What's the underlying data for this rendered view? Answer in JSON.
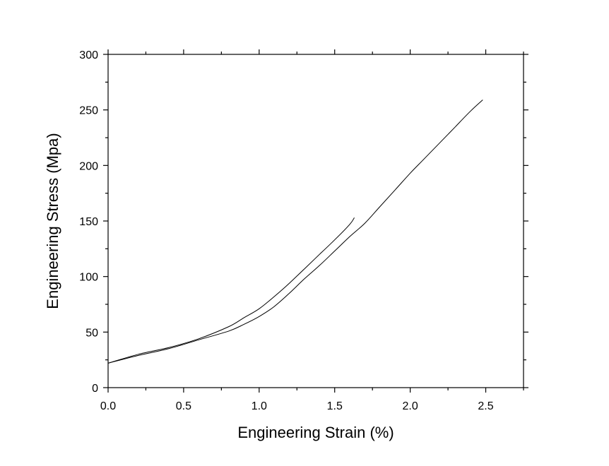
{
  "chart_data": {
    "type": "line",
    "title": "",
    "xlabel": "Engineering Strain (%)",
    "ylabel": "Engineering Stress (Mpa)",
    "xlim": [
      0,
      2.75
    ],
    "ylim": [
      0,
      300
    ],
    "xticks": [
      0.0,
      0.5,
      1.0,
      1.5,
      2.0,
      2.5
    ],
    "xtick_labels": [
      "0.0",
      "0.5",
      "1.0",
      "1.5",
      "2.0",
      "2.5"
    ],
    "yticks": [
      0,
      50,
      100,
      150,
      200,
      250,
      300
    ],
    "ytick_labels": [
      "0",
      "50",
      "100",
      "150",
      "200",
      "250",
      "300"
    ],
    "grid": false,
    "legend": false,
    "series": [
      {
        "x": [
          0,
          0.2,
          0.4,
          0.6,
          0.8,
          0.9,
          1.0,
          1.1,
          1.2,
          1.3,
          1.4,
          1.5,
          1.6,
          1.63
        ],
        "y": [
          22,
          30,
          36,
          44,
          55,
          63,
          71,
          82,
          94,
          107,
          120,
          133,
          147,
          153
        ]
      },
      {
        "x": [
          0,
          0.2,
          0.4,
          0.6,
          0.8,
          0.9,
          1.0,
          1.1,
          1.2,
          1.3,
          1.4,
          1.5,
          1.6,
          1.7,
          1.8,
          1.9,
          2.0,
          2.1,
          2.2,
          2.3,
          2.4,
          2.48
        ],
        "y": [
          22,
          29,
          35,
          43,
          51,
          57,
          64,
          73,
          85,
          98,
          110,
          123,
          136,
          148,
          163,
          178,
          193,
          207,
          221,
          235,
          249,
          259
        ]
      }
    ]
  }
}
